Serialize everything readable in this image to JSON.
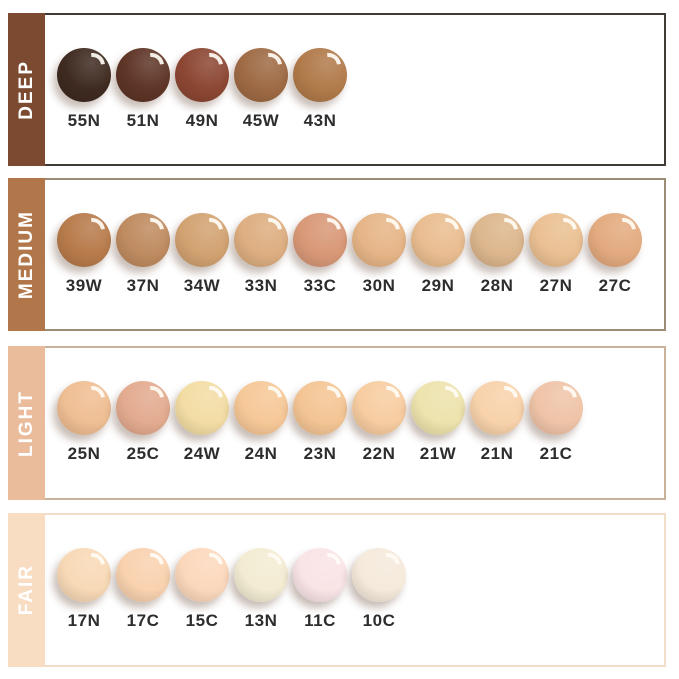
{
  "styles": {
    "background": "#ffffff",
    "band_text_color": "#ffffff",
    "code_text_color": "#2d2d2d"
  },
  "rows": [
    {
      "id": "deep",
      "label": "DEEP",
      "band_color": "#7b4a30",
      "border_color": "#403b35",
      "shades": [
        {
          "code": "55N",
          "color": "#3e2a20"
        },
        {
          "code": "51N",
          "color": "#5e3526"
        },
        {
          "code": "49N",
          "color": "#8c4733"
        },
        {
          "code": "45W",
          "color": "#9e6a44"
        },
        {
          "code": "43N",
          "color": "#b17a4a"
        }
      ]
    },
    {
      "id": "medium",
      "label": "MEDIUM",
      "band_color": "#b1774a",
      "border_color": "#9b8d74",
      "shades": [
        {
          "code": "39W",
          "color": "#b77b4b"
        },
        {
          "code": "37N",
          "color": "#bf8b60"
        },
        {
          "code": "34W",
          "color": "#d2a271"
        },
        {
          "code": "33N",
          "color": "#ddae80"
        },
        {
          "code": "33C",
          "color": "#d89877"
        },
        {
          "code": "30N",
          "color": "#e6b587"
        },
        {
          "code": "29N",
          "color": "#e9bd90"
        },
        {
          "code": "28N",
          "color": "#dcb68d"
        },
        {
          "code": "27N",
          "color": "#eac092"
        },
        {
          "code": "27C",
          "color": "#e3aa7f"
        }
      ]
    },
    {
      "id": "light",
      "label": "LIGHT",
      "band_color": "#eabc9b",
      "border_color": "#c9b299",
      "shades": [
        {
          "code": "25N",
          "color": "#efbe93"
        },
        {
          "code": "25C",
          "color": "#e3ab8f"
        },
        {
          "code": "24W",
          "color": "#f3dda4"
        },
        {
          "code": "24N",
          "color": "#f6c897"
        },
        {
          "code": "23N",
          "color": "#f4c594"
        },
        {
          "code": "22N",
          "color": "#f7cda1"
        },
        {
          "code": "21W",
          "color": "#ede3ad"
        },
        {
          "code": "21N",
          "color": "#f8d2ab"
        },
        {
          "code": "21C",
          "color": "#efc4a8"
        }
      ]
    },
    {
      "id": "fair",
      "label": "FAIR",
      "band_color": "#f9ddc2",
      "border_color": "#f1ddc8",
      "shades": [
        {
          "code": "17N",
          "color": "#f8d9b6"
        },
        {
          "code": "17C",
          "color": "#f9d2af"
        },
        {
          "code": "15C",
          "color": "#fbd8bc"
        },
        {
          "code": "13N",
          "color": "#f3ecd3"
        },
        {
          "code": "11C",
          "color": "#f9e4e6"
        },
        {
          "code": "10C",
          "color": "#f5eadb"
        }
      ]
    }
  ]
}
